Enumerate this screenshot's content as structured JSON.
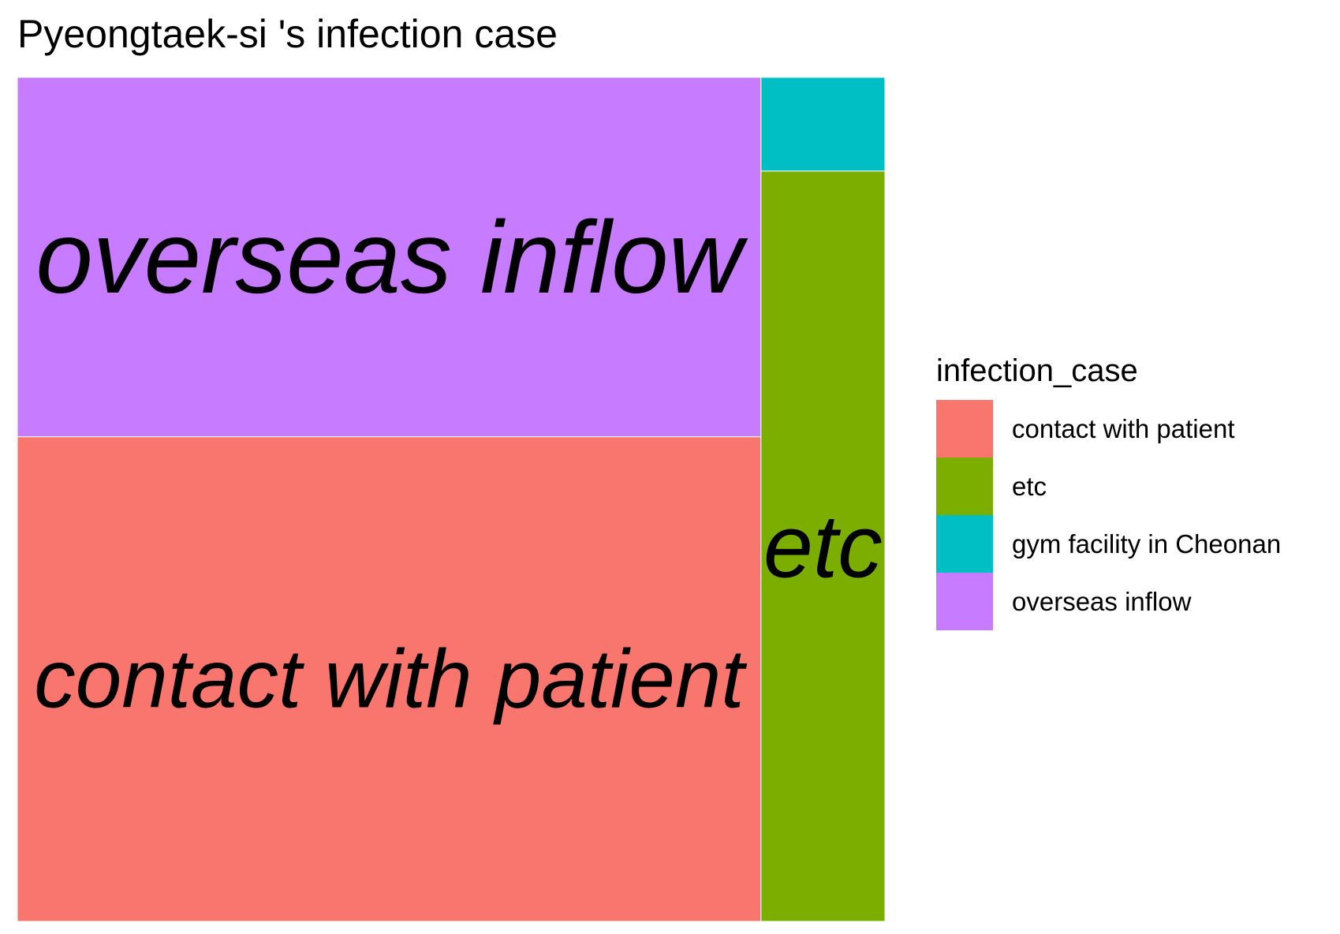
{
  "chart_data": {
    "type": "treemap",
    "title": "Pyeongtaek-si 's infection case",
    "legend": {
      "title": "infection_case",
      "placement": "right",
      "entries": [
        {
          "label": "contact with patient",
          "color": "#F8766D"
        },
        {
          "label": "etc",
          "color": "#7CAE00"
        },
        {
          "label": "gym facility in Cheonan",
          "color": "#00BFC4"
        },
        {
          "label": "overseas inflow",
          "color": "#C77CFF"
        }
      ]
    },
    "categories": [
      "contact with patient",
      "overseas inflow",
      "etc",
      "gym facility in Cheonan"
    ],
    "values": [
      31,
      23,
      8,
      1
    ],
    "tile_labels": [
      "contact with patient",
      "overseas inflow",
      "etc",
      ""
    ],
    "colors": [
      "#F8766D",
      "#C77CFF",
      "#7CAE00",
      "#00BFC4"
    ]
  }
}
